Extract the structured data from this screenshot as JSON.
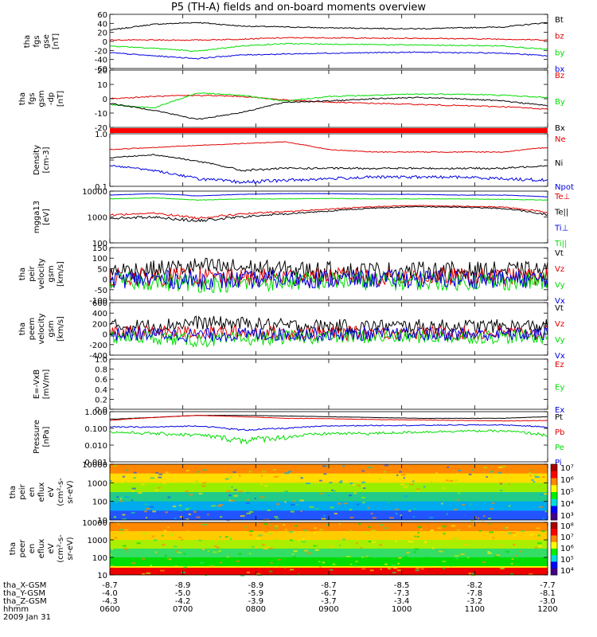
{
  "title": "P5 (TH-A) fields and on-board moments overview",
  "time_ticks": [
    "0600",
    "0700",
    "0800",
    "0900",
    "1000",
    "1100",
    "1200"
  ],
  "ephemeris": {
    "labels": [
      "tha_X-GSM",
      "tha_Y-GSM",
      "tha_Z-GSM",
      "hhmm",
      "2009 Jan 31"
    ],
    "rows": [
      [
        "-8.7",
        "-8.9",
        "-8.9",
        "-8.7",
        "-8.5",
        "-8.2",
        "-7.7"
      ],
      [
        "-4.0",
        "-5.0",
        "-5.9",
        "-6.7",
        "-7.3",
        "-7.8",
        "-8.1"
      ],
      [
        "-4.3",
        "-4.2",
        "-3.9",
        "-3.7",
        "-3.4",
        "-3.2",
        "-3.0"
      ],
      [
        "0600",
        "0700",
        "0800",
        "0900",
        "1000",
        "1100",
        "1200"
      ]
    ]
  },
  "colors": {
    "black": "#000000",
    "red": "#e00000",
    "green": "#00dd00",
    "blue": "#0000e0"
  },
  "panels": [
    {
      "id": "fgs-gse",
      "ylabel": [
        "tha",
        "fgs",
        "gse",
        "[nT]"
      ],
      "yticks": [
        "60",
        "40",
        "20",
        "0",
        "-20",
        "-40",
        "-60"
      ],
      "legend": [
        {
          "t": "Bt",
          "c": "black"
        },
        {
          "t": "bz",
          "c": "red"
        },
        {
          "t": "by",
          "c": "green"
        },
        {
          "t": "bx",
          "c": "blue"
        }
      ]
    },
    {
      "id": "fgs-gsm-dp",
      "ylabel": [
        "tha",
        "fgs",
        "gsm",
        "-dp",
        "[nT]"
      ],
      "yticks": [
        "20",
        "10",
        "0",
        "-10",
        "-20"
      ],
      "legend": [
        {
          "t": "Bz",
          "c": "red"
        },
        {
          "t": "By",
          "c": "green"
        },
        {
          "t": "Bx",
          "c": "black"
        }
      ]
    },
    {
      "id": "density",
      "ylabel": [
        "Density",
        "[cm-3]"
      ],
      "yticks": [
        "1.0",
        "",
        "0.1"
      ],
      "legend": [
        {
          "t": "Ne",
          "c": "red"
        },
        {
          "t": "Ni",
          "c": "black"
        },
        {
          "t": "Npot",
          "c": "blue"
        }
      ]
    },
    {
      "id": "temperature",
      "ylabel": [
        "mgga13",
        "[eV]"
      ],
      "yticks": [
        "10000",
        "1000",
        "100"
      ],
      "legend": [
        {
          "t": "Te⊥",
          "c": "red"
        },
        {
          "t": "Te||",
          "c": "black"
        },
        {
          "t": "Ti⊥",
          "c": "blue"
        },
        {
          "t": "Ti||",
          "c": "green"
        }
      ]
    },
    {
      "id": "peir-velocity",
      "ylabel": [
        "tha",
        "peir",
        "velocity",
        "gsm",
        "[km/s]"
      ],
      "yticks": [
        "150",
        "100",
        "50",
        "0",
        "-50",
        "-100"
      ],
      "legend": [
        {
          "t": "Vt",
          "c": "black"
        },
        {
          "t": "Vz",
          "c": "red"
        },
        {
          "t": "Vy",
          "c": "green"
        },
        {
          "t": "Vx",
          "c": "blue"
        }
      ]
    },
    {
      "id": "peem-velocity",
      "ylabel": [
        "tha",
        "peem",
        "velocity",
        "gsm",
        "[km/s]"
      ],
      "yticks": [
        "600",
        "400",
        "200",
        "0",
        "-200",
        "-400"
      ],
      "legend": [
        {
          "t": "Vt",
          "c": "black"
        },
        {
          "t": "Vz",
          "c": "red"
        },
        {
          "t": "Vy",
          "c": "green"
        },
        {
          "t": "Vx",
          "c": "blue"
        }
      ]
    },
    {
      "id": "e-field",
      "ylabel": [
        "E=-VxB",
        "[mV/m]"
      ],
      "yticks": [
        "1.0",
        "0.8",
        "0.6",
        "0.4",
        "0.2",
        "0.0"
      ],
      "legend": [
        {
          "t": "Ez",
          "c": "red"
        },
        {
          "t": "Ey",
          "c": "green"
        },
        {
          "t": "Ex",
          "c": "blue"
        }
      ]
    },
    {
      "id": "pressure",
      "ylabel": [
        "Pressure",
        "[nPa]"
      ],
      "yticks": [
        "1.000",
        "0.100",
        "0.010",
        "0.001"
      ],
      "legend": [
        {
          "t": "Pt",
          "c": "black"
        },
        {
          "t": "Pb",
          "c": "red"
        },
        {
          "t": "Pe",
          "c": "green"
        },
        {
          "t": "Pi",
          "c": "blue"
        }
      ]
    },
    {
      "id": "peir-eflux",
      "ylabel": [
        "tha",
        "peir",
        "en",
        "eflux",
        "eV",
        "(cm²-s-",
        "sr-eV)"
      ],
      "yticks": [
        "10000",
        "1000",
        "100",
        "10"
      ],
      "colorbar": [
        "10⁷",
        "10⁶",
        "10⁵",
        "10⁴",
        "10³"
      ]
    },
    {
      "id": "peer-eflux",
      "ylabel": [
        "tha",
        "peer",
        "en",
        "eflux",
        "eV",
        "(cm²-s-",
        "sr-eV)"
      ],
      "yticks": [
        "10000",
        "1000",
        "100",
        "10"
      ],
      "colorbar": [
        "10⁸",
        "10⁷",
        "10⁶",
        "10⁵",
        "10⁴"
      ]
    }
  ],
  "chart_data": [
    {
      "type": "line",
      "id": "fgs-gse",
      "ylim": [
        -60,
        60
      ],
      "series": [
        {
          "name": "Bt",
          "values": [
            25,
            38,
            42,
            34,
            32,
            30,
            29,
            28,
            30,
            32,
            42
          ]
        },
        {
          "name": "bz",
          "values": [
            3,
            3,
            3,
            5,
            8,
            8,
            7,
            7,
            6,
            5,
            3
          ]
        },
        {
          "name": "by",
          "values": [
            -10,
            -15,
            -22,
            -10,
            -5,
            -6,
            -7,
            -8,
            -9,
            -10,
            -18
          ]
        },
        {
          "name": "bx",
          "values": [
            -25,
            -32,
            -38,
            -30,
            -28,
            -26,
            -25,
            -24,
            -25,
            -26,
            -32
          ]
        }
      ]
    },
    {
      "type": "line",
      "id": "fgs-gsm-dp",
      "ylim": [
        -25,
        25
      ],
      "series": [
        {
          "name": "Bz",
          "values": [
            0,
            2,
            3,
            2,
            -1,
            -3,
            -4,
            -5,
            -6,
            -7,
            -9
          ]
        },
        {
          "name": "By",
          "values": [
            -5,
            -8,
            5,
            3,
            -2,
            2,
            3,
            4,
            4,
            3,
            1
          ]
        },
        {
          "name": "Bx",
          "values": [
            -4,
            -10,
            -18,
            -12,
            -3,
            -2,
            0,
            1,
            0,
            -2,
            -6
          ]
        }
      ]
    },
    {
      "type": "line",
      "id": "density",
      "ylim": [
        0.1,
        1.0
      ],
      "series": [
        {
          "name": "Ne",
          "values": [
            0.5,
            0.55,
            0.6,
            0.65,
            0.7,
            0.5,
            0.45,
            0.45,
            0.45,
            0.45,
            0.55
          ]
        },
        {
          "name": "Ni",
          "values": [
            0.35,
            0.4,
            0.3,
            0.2,
            0.22,
            0.22,
            0.22,
            0.22,
            0.22,
            0.22,
            0.25
          ]
        },
        {
          "name": "Npot",
          "values": [
            0.25,
            0.2,
            0.14,
            0.12,
            0.13,
            0.14,
            0.15,
            0.15,
            0.15,
            0.14,
            0.13
          ]
        }
      ]
    },
    {
      "type": "line",
      "id": "temperature",
      "ylim": [
        100,
        10000
      ],
      "series": [
        {
          "name": "Te⊥",
          "values": [
            1200,
            1400,
            900,
            1300,
            1600,
            2000,
            2500,
            2800,
            2600,
            2400,
            1500
          ]
        },
        {
          "name": "Te||",
          "values": [
            900,
            1000,
            700,
            1000,
            1300,
            1700,
            2200,
            2500,
            2400,
            2100,
            1200
          ]
        },
        {
          "name": "Ti⊥",
          "values": [
            7000,
            8000,
            6500,
            7500,
            8000,
            8000,
            7500,
            7500,
            7000,
            7000,
            6000
          ]
        },
        {
          "name": "Ti||",
          "values": [
            5000,
            5500,
            4500,
            5000,
            5000,
            5200,
            5000,
            5000,
            5000,
            4800,
            4500
          ]
        }
      ]
    },
    {
      "type": "line",
      "id": "peir-velocity",
      "ylim": [
        -100,
        150
      ],
      "series": [
        {
          "name": "Vt",
          "values": [
            40,
            45,
            60,
            55,
            45,
            40,
            40,
            40,
            40,
            40,
            40
          ]
        },
        {
          "name": "Vz",
          "values": [
            10,
            10,
            10,
            5,
            10,
            10,
            10,
            10,
            10,
            10,
            10
          ]
        },
        {
          "name": "Vy",
          "values": [
            -10,
            -10,
            -20,
            -20,
            -10,
            -10,
            -10,
            -10,
            -10,
            -10,
            -10
          ]
        },
        {
          "name": "Vx",
          "values": [
            0,
            0,
            -5,
            -5,
            0,
            0,
            0,
            0,
            0,
            0,
            0
          ]
        }
      ]
    },
    {
      "type": "line",
      "id": "peem-velocity",
      "ylim": [
        -400,
        600
      ],
      "series": [
        {
          "name": "Vt",
          "values": [
            150,
            160,
            220,
            200,
            160,
            150,
            150,
            150,
            150,
            150,
            150
          ]
        },
        {
          "name": "Vz",
          "values": [
            20,
            30,
            30,
            30,
            20,
            20,
            20,
            20,
            20,
            20,
            20
          ]
        },
        {
          "name": "Vy",
          "values": [
            -50,
            -60,
            -120,
            -100,
            -60,
            -50,
            -50,
            -50,
            -50,
            -50,
            -50
          ]
        },
        {
          "name": "Vx",
          "values": [
            0,
            0,
            -20,
            -10,
            0,
            0,
            0,
            0,
            0,
            0,
            0
          ]
        }
      ]
    },
    {
      "type": "line",
      "id": "pressure",
      "ylim": [
        0.001,
        1.0
      ],
      "series": [
        {
          "name": "Pt",
          "values": [
            0.35,
            0.45,
            0.6,
            0.6,
            0.55,
            0.5,
            0.45,
            0.4,
            0.4,
            0.4,
            0.5
          ]
        },
        {
          "name": "Pb",
          "values": [
            0.3,
            0.45,
            0.6,
            0.5,
            0.4,
            0.38,
            0.34,
            0.32,
            0.3,
            0.28,
            0.3
          ]
        },
        {
          "name": "Pe",
          "values": [
            0.06,
            0.05,
            0.04,
            0.02,
            0.03,
            0.05,
            0.05,
            0.06,
            0.07,
            0.07,
            0.04
          ]
        },
        {
          "name": "Pi",
          "values": [
            0.12,
            0.12,
            0.14,
            0.08,
            0.1,
            0.14,
            0.15,
            0.15,
            0.16,
            0.16,
            0.12
          ]
        }
      ]
    },
    {
      "type": "heatmap",
      "id": "peir-eflux",
      "ylim": [
        10,
        10000
      ]
    },
    {
      "type": "heatmap",
      "id": "peer-eflux",
      "ylim": [
        10,
        10000
      ]
    }
  ]
}
